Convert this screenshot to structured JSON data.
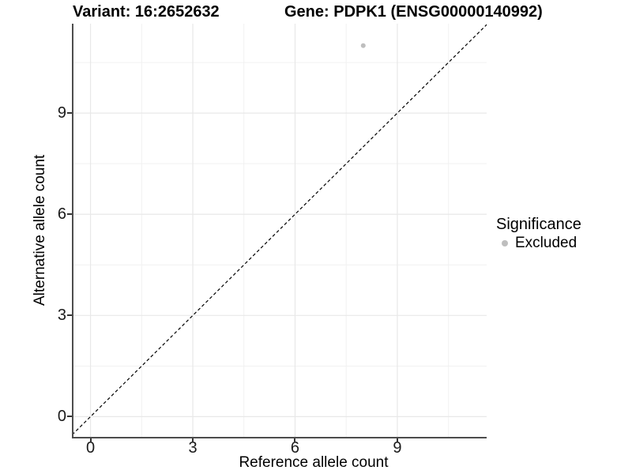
{
  "chart_data": {
    "type": "scatter",
    "titles": {
      "left": "Variant: 16:2652632",
      "right": "Gene: PDPK1 (ENSG00000140992)"
    },
    "xlabel": "Reference allele count",
    "ylabel": "Alternative allele count",
    "xlim": [
      -0.5,
      11.62
    ],
    "ylim": [
      -0.6,
      11.65
    ],
    "x_ticks": [
      0,
      3,
      6,
      9
    ],
    "y_ticks": [
      0,
      3,
      6,
      9
    ],
    "x_minor_ticks": [
      1.5,
      4.5,
      7.5,
      10.5
    ],
    "y_minor_ticks": [
      1.5,
      4.5,
      7.5,
      10.5
    ],
    "grid": "major+minor",
    "points": [
      {
        "x": 8,
        "y": 11,
        "series": "Excluded"
      }
    ],
    "reference_line": {
      "kind": "identity y=x",
      "style": "dashed",
      "color": "#000000"
    },
    "legend": {
      "title": "Significance",
      "position": "right",
      "entries": [
        {
          "label": "Excluded",
          "color": "#bebebe"
        }
      ]
    },
    "colors": {
      "point": "#bebebe",
      "grid_major": "#e8e8e8",
      "grid_minor": "#f1f1f1",
      "axis_line": "#4d4d4d",
      "text": "#000000",
      "background": "#ffffff"
    }
  }
}
